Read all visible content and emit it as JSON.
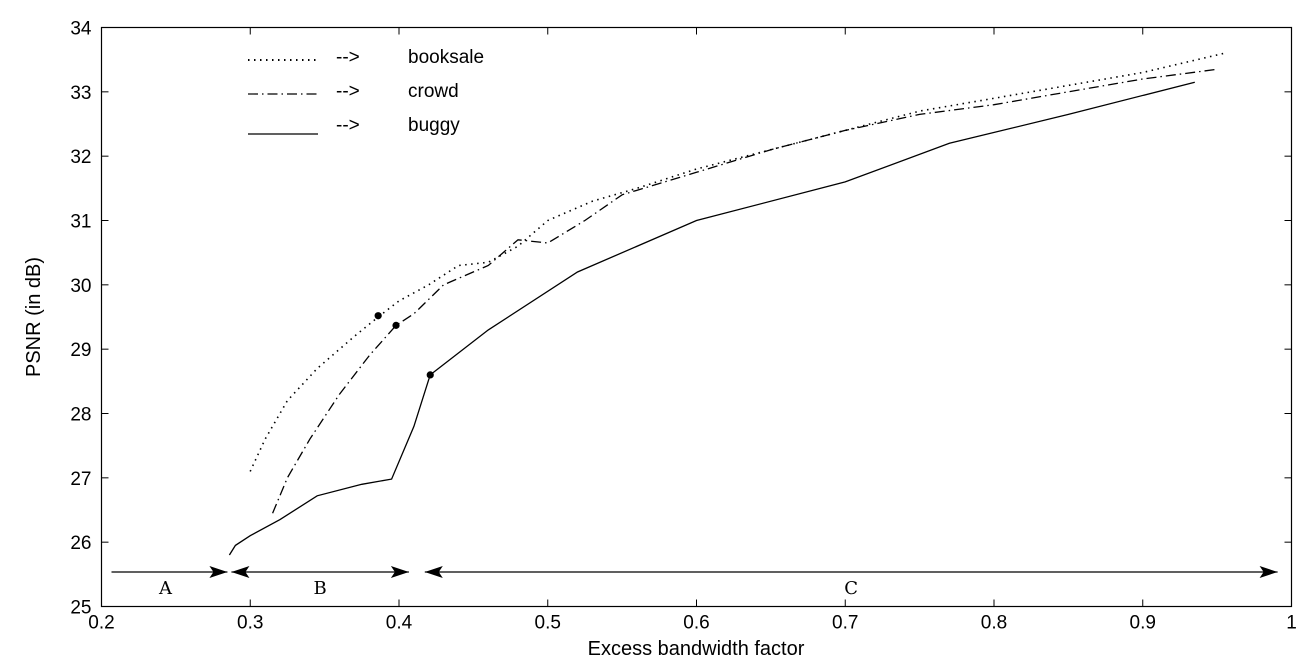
{
  "chart_data": {
    "type": "line",
    "title": "",
    "xlabel": "Excess bandwidth factor",
    "ylabel": "PSNR (in dB)",
    "xlim": [
      0.2,
      1.0
    ],
    "ylim": [
      25,
      34
    ],
    "xticks": [
      "0.2",
      "0.3",
      "0.4",
      "0.5",
      "0.6",
      "0.7",
      "0.8",
      "0.9",
      "1"
    ],
    "yticks": [
      "25",
      "26",
      "27",
      "28",
      "29",
      "30",
      "31",
      "32",
      "33",
      "34"
    ],
    "grid": false,
    "legend_position": "top-left",
    "series": [
      {
        "name": "booksale",
        "legend_sample": "........",
        "legend_arrow": "-->",
        "style": "dotted",
        "x": [
          0.3,
          0.31,
          0.325,
          0.345,
          0.37,
          0.386,
          0.4,
          0.42,
          0.44,
          0.46,
          0.48,
          0.5,
          0.53,
          0.56,
          0.6,
          0.65,
          0.7,
          0.75,
          0.8,
          0.85,
          0.9,
          0.955
        ],
        "y": [
          27.1,
          27.6,
          28.2,
          28.7,
          29.2,
          29.5,
          29.75,
          30.0,
          30.3,
          30.35,
          30.6,
          31.0,
          31.3,
          31.5,
          31.8,
          32.1,
          32.4,
          32.7,
          32.9,
          33.1,
          33.3,
          33.6
        ],
        "marker": {
          "x": 0.386,
          "y": 29.52
        }
      },
      {
        "name": "crowd",
        "legend_sample": "_._._",
        "legend_arrow": "-->",
        "style": "dashdot",
        "x": [
          0.315,
          0.325,
          0.34,
          0.36,
          0.38,
          0.398,
          0.41,
          0.43,
          0.46,
          0.48,
          0.5,
          0.525,
          0.55,
          0.6,
          0.65,
          0.7,
          0.75,
          0.8,
          0.85,
          0.9,
          0.95
        ],
        "y": [
          26.45,
          27.0,
          27.6,
          28.3,
          28.9,
          29.37,
          29.55,
          30.0,
          30.3,
          30.7,
          30.65,
          31.0,
          31.4,
          31.75,
          32.1,
          32.4,
          32.65,
          32.8,
          33.0,
          33.2,
          33.35
        ],
        "marker": {
          "x": 0.398,
          "y": 29.37
        }
      },
      {
        "name": "buggy",
        "legend_sample": "______",
        "legend_arrow": "-->",
        "style": "solid",
        "x": [
          0.286,
          0.29,
          0.3,
          0.32,
          0.345,
          0.375,
          0.395,
          0.41,
          0.421,
          0.46,
          0.52,
          0.6,
          0.7,
          0.77,
          0.85,
          0.935
        ],
        "y": [
          25.8,
          25.95,
          26.1,
          26.35,
          26.72,
          26.9,
          26.98,
          27.8,
          28.6,
          29.3,
          30.2,
          31.0,
          31.6,
          32.2,
          32.65,
          33.15
        ],
        "marker": {
          "x": 0.421,
          "y": 28.6
        }
      }
    ],
    "regions": [
      {
        "label": "A",
        "x_start": 0.2,
        "x_end": 0.286
      },
      {
        "label": "B",
        "x_start": 0.286,
        "x_end": 0.408
      },
      {
        "label": "C",
        "x_start": 0.416,
        "x_end": 0.992
      }
    ]
  }
}
